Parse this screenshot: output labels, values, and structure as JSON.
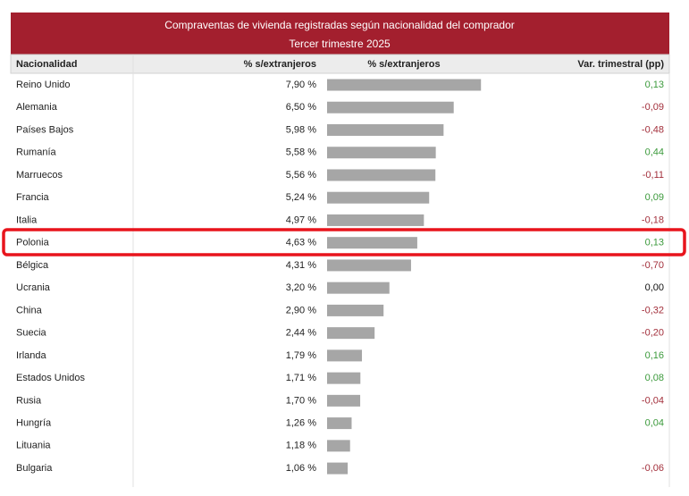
{
  "title": [
    "Compraventas de vivienda registradas según nacionalidad del comprador",
    "Tercer trimestre 2025"
  ],
  "table": {
    "header": [
      "Nacionalidad",
      "% s/extranjeros",
      "% s/extranjeros",
      "Var. trimestral (pp)"
    ],
    "rows": [
      {
        "name": "Reino Unido",
        "share": 7.9,
        "share_label": "7,90 %",
        "change": 0.13,
        "change_label": "0,13"
      },
      {
        "name": "Alemania",
        "share": 6.5,
        "share_label": "6,50 %",
        "change": -0.09,
        "change_label": "-0,09"
      },
      {
        "name": "Países Bajos",
        "share": 5.98,
        "share_label": "5,98 %",
        "change": -0.48,
        "change_label": "-0,48"
      },
      {
        "name": "Rumanía",
        "share": 5.58,
        "share_label": "5,58 %",
        "change": 0.44,
        "change_label": "0,44"
      },
      {
        "name": "Marruecos",
        "share": 5.56,
        "share_label": "5,56 %",
        "change": -0.11,
        "change_label": "-0,11"
      },
      {
        "name": "Francia",
        "share": 5.24,
        "share_label": "5,24 %",
        "change": 0.09,
        "change_label": "0,09"
      },
      {
        "name": "Italia",
        "share": 4.97,
        "share_label": "4,97 %",
        "change": -0.18,
        "change_label": "-0,18"
      },
      {
        "name": "Polonia",
        "share": 4.63,
        "share_label": "4,63 %",
        "change": 0.13,
        "change_label": "0,13"
      },
      {
        "name": "Bélgica",
        "share": 4.31,
        "share_label": "4,31 %",
        "change": -0.7,
        "change_label": "-0,70"
      },
      {
        "name": "Ucrania",
        "share": 3.2,
        "share_label": "3,20 %",
        "change": 0.0,
        "change_label": "0,00"
      },
      {
        "name": "China",
        "share": 2.9,
        "share_label": "2,90 %",
        "change": -0.32,
        "change_label": "-0,32"
      },
      {
        "name": "Suecia",
        "share": 2.44,
        "share_label": "2,44 %",
        "change": -0.2,
        "change_label": "-0,20"
      },
      {
        "name": "Irlanda",
        "share": 1.79,
        "share_label": "1,79 %",
        "change": 0.16,
        "change_label": "0,16"
      },
      {
        "name": "Estados Unidos",
        "share": 1.71,
        "share_label": "1,71 %",
        "change": 0.08,
        "change_label": "0,08"
      },
      {
        "name": "Rusia",
        "share": 1.7,
        "share_label": "1,70 %",
        "change": -0.04,
        "change_label": "-0,04"
      },
      {
        "name": "Hungría",
        "share": 1.26,
        "share_label": "1,26 %",
        "change": 0.04,
        "change_label": "0,04"
      },
      {
        "name": "Lituania",
        "share": 1.18,
        "share_label": "1,18 %",
        "change": null,
        "change_label": null
      },
      {
        "name": "Bulgaria",
        "share": 1.06,
        "share_label": "1,06 %",
        "change": -0.06,
        "change_label": "-0,06"
      }
    ]
  }
}
